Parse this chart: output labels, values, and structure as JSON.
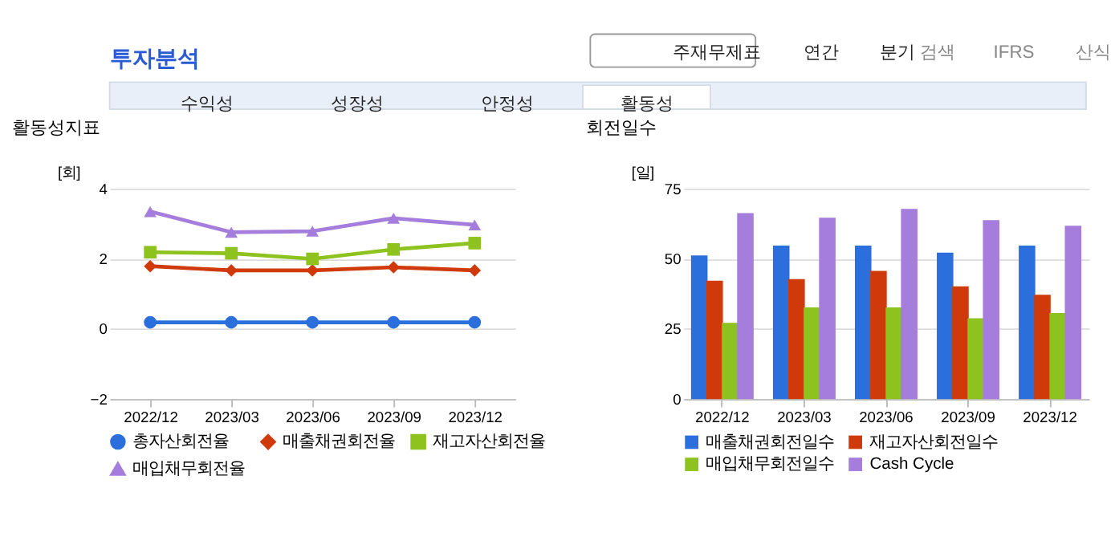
{
  "chart_data": [
    {
      "type": "other",
      "title": "투자분석",
      "annotations": [
        "주재무제표",
        "연간",
        "분기",
        "검색",
        "IFRS",
        "산식",
        "수익성",
        "성장성",
        "안정성",
        "활동성"
      ]
    },
    {
      "type": "line",
      "title": "활동성지표",
      "ylabel": "[회]",
      "categories": [
        "2022/12",
        "2023/03",
        "2023/06",
        "2023/09",
        "2023/12"
      ],
      "ylim": [
        -2,
        4
      ],
      "yticks": [
        -2,
        0,
        2,
        4
      ],
      "grid": "y",
      "legend": "bottom",
      "line_style": "solid",
      "series": [
        {
          "name": "총자산회전율",
          "color": "#2a6fdc",
          "marker": "circle",
          "values": [
            0.19,
            0.19,
            0.19,
            0.19,
            0.19
          ]
        },
        {
          "name": "매출채권회전율",
          "color": "#d03a0b",
          "marker": "diamond",
          "values": [
            1.79,
            1.67,
            1.67,
            1.76,
            1.67
          ]
        },
        {
          "name": "재고자산회전율",
          "color": "#8dc21f",
          "marker": "square",
          "values": [
            2.19,
            2.16,
            2.0,
            2.27,
            2.45
          ]
        },
        {
          "name": "매입채무회전율",
          "color": "#a57ddc",
          "marker": "triangle",
          "values": [
            3.35,
            2.76,
            2.79,
            3.16,
            2.97
          ]
        }
      ]
    },
    {
      "type": "bar",
      "title": "회전일수",
      "ylabel": "[일]",
      "categories": [
        "2022/12",
        "2023/03",
        "2023/06",
        "2023/09",
        "2023/12"
      ],
      "ylim": [
        0,
        75
      ],
      "yticks": [
        0,
        25,
        50,
        75
      ],
      "grid": "y",
      "legend": "bottom",
      "series": [
        {
          "name": "매출채권회전일수",
          "color": "#2a6fdc",
          "values": [
            51.2,
            54.7,
            54.7,
            52.2,
            54.7
          ]
        },
        {
          "name": "재고자산회전일수",
          "color": "#d03a0b",
          "values": [
            42.2,
            42.8,
            45.7,
            40.2,
            37.2
          ]
        },
        {
          "name": "매입채무회전일수",
          "color": "#8dc21f",
          "values": [
            27.2,
            32.7,
            32.7,
            28.8,
            30.7
          ]
        },
        {
          "name": "Cash Cycle",
          "color": "#a57ddc",
          "values": [
            66.3,
            64.7,
            67.8,
            63.8,
            61.8
          ]
        }
      ]
    }
  ]
}
